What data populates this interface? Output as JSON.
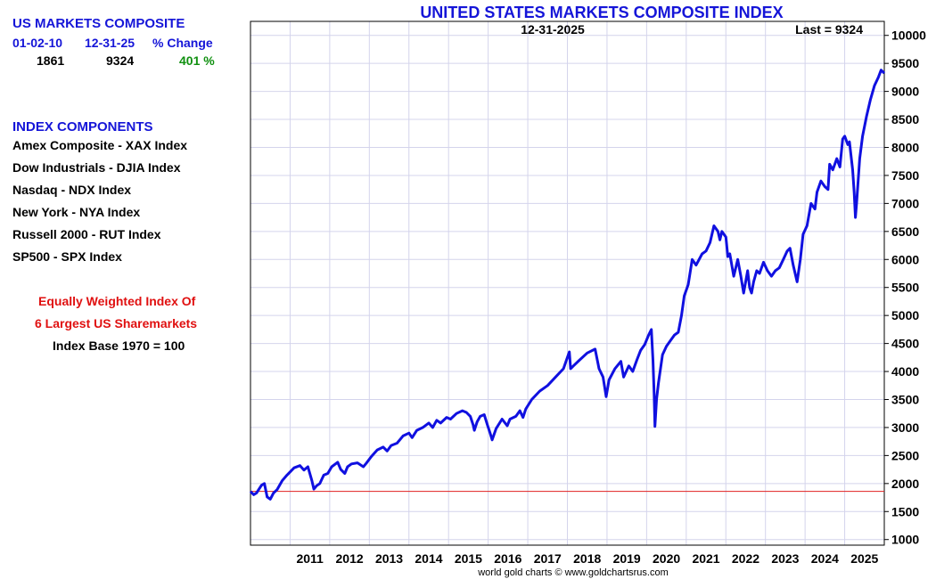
{
  "summary": {
    "heading": "US MARKETS COMPOSITE",
    "col_start": "01-02-10",
    "col_end": "12-31-25",
    "col_change": "% Change",
    "start_value": "1861",
    "end_value": "9324",
    "change_value": "401 %"
  },
  "components": {
    "heading": "INDEX COMPONENTS",
    "items": [
      "Amex Composite - XAX Index",
      "Dow Industrials - DJIA Index",
      "Nasdaq - NDX Index",
      "New York - NYA Index",
      "Russell 2000 - RUT Index",
      "SP500 - SPX Index"
    ]
  },
  "notes": {
    "line1": "Equally Weighted Index Of",
    "line2": "6 Largest US Sharemarkets",
    "line3": "Index Base 1970 = 100"
  },
  "colors": {
    "series": "#1010e0",
    "baseline": "#e02020",
    "grid": "#d4d4ec",
    "title": "#1515d8",
    "heading": "#1515d8",
    "change": "#109010",
    "note": "#e01010"
  },
  "chart_data": {
    "type": "line",
    "title": "UNITED STATES MARKETS COMPOSITE INDEX",
    "date_label": "12-31-2025",
    "last_label": "Last = 9324",
    "credit": "world gold charts © www.goldchartsrus.com",
    "xlabel": "",
    "ylabel": "",
    "xlim": [
      2010.0,
      2026.0
    ],
    "ylim": [
      900,
      10250
    ],
    "y_ticks": [
      1000,
      1500,
      2000,
      2500,
      3000,
      3500,
      4000,
      4500,
      5000,
      5500,
      6000,
      6500,
      7000,
      7500,
      8000,
      8500,
      9000,
      9500,
      10000
    ],
    "x_ticks": [
      2011,
      2012,
      2013,
      2014,
      2015,
      2016,
      2017,
      2018,
      2019,
      2020,
      2021,
      2022,
      2023,
      2024,
      2025
    ],
    "baseline": 1861,
    "grid": true,
    "series": [
      {
        "name": "US Markets Composite",
        "x": [
          2010.0,
          2010.08,
          2010.15,
          2010.28,
          2010.35,
          2010.42,
          2010.5,
          2010.58,
          2010.67,
          2010.8,
          2010.92,
          2011.1,
          2011.25,
          2011.35,
          2011.45,
          2011.55,
          2011.6,
          2011.67,
          2011.75,
          2011.85,
          2011.95,
          2012.05,
          2012.2,
          2012.28,
          2012.38,
          2012.45,
          2012.55,
          2012.7,
          2012.85,
          2012.92,
          2013.05,
          2013.2,
          2013.35,
          2013.45,
          2013.55,
          2013.7,
          2013.85,
          2014.0,
          2014.08,
          2014.2,
          2014.35,
          2014.5,
          2014.6,
          2014.7,
          2014.8,
          2014.95,
          2015.05,
          2015.2,
          2015.35,
          2015.45,
          2015.55,
          2015.62,
          2015.65,
          2015.72,
          2015.8,
          2015.9,
          2015.98,
          2016.05,
          2016.1,
          2016.2,
          2016.35,
          2016.48,
          2016.55,
          2016.7,
          2016.8,
          2016.88,
          2016.95,
          2017.1,
          2017.3,
          2017.5,
          2017.7,
          2017.9,
          2018.0,
          2018.05,
          2018.08,
          2018.15,
          2018.3,
          2018.5,
          2018.7,
          2018.8,
          2018.9,
          2018.98,
          2019.05,
          2019.2,
          2019.35,
          2019.42,
          2019.55,
          2019.65,
          2019.75,
          2019.85,
          2019.95,
          2020.05,
          2020.12,
          2020.16,
          2020.19,
          2020.21,
          2020.25,
          2020.3,
          2020.4,
          2020.5,
          2020.6,
          2020.7,
          2020.8,
          2020.88,
          2020.95,
          2021.05,
          2021.15,
          2021.25,
          2021.4,
          2021.5,
          2021.6,
          2021.7,
          2021.8,
          2021.85,
          2021.9,
          2022.0,
          2022.05,
          2022.1,
          2022.2,
          2022.3,
          2022.38,
          2022.45,
          2022.55,
          2022.6,
          2022.65,
          2022.7,
          2022.78,
          2022.85,
          2022.95,
          2023.05,
          2023.15,
          2023.25,
          2023.35,
          2023.45,
          2023.55,
          2023.62,
          2023.7,
          2023.8,
          2023.88,
          2023.95,
          2024.05,
          2024.15,
          2024.25,
          2024.3,
          2024.4,
          2024.5,
          2024.58,
          2024.62,
          2024.7,
          2024.8,
          2024.88,
          2024.95,
          2025.0,
          2025.08,
          2025.12,
          2025.2,
          2025.24,
          2025.27,
          2025.3,
          2025.38,
          2025.45,
          2025.55,
          2025.65,
          2025.75,
          2025.85,
          2025.92,
          2026.0
        ],
        "values": [
          1861,
          1800,
          1830,
          1970,
          2000,
          1760,
          1720,
          1830,
          1890,
          2050,
          2150,
          2280,
          2320,
          2240,
          2300,
          2050,
          1900,
          1960,
          2000,
          2150,
          2180,
          2300,
          2380,
          2250,
          2180,
          2300,
          2350,
          2370,
          2300,
          2360,
          2480,
          2600,
          2650,
          2580,
          2680,
          2720,
          2850,
          2900,
          2820,
          2950,
          3000,
          3080,
          3000,
          3130,
          3080,
          3180,
          3150,
          3250,
          3300,
          3270,
          3200,
          3050,
          2950,
          3100,
          3200,
          3230,
          3050,
          2900,
          2780,
          2980,
          3150,
          3030,
          3150,
          3200,
          3300,
          3180,
          3330,
          3500,
          3650,
          3750,
          3900,
          4050,
          4250,
          4350,
          4050,
          4100,
          4200,
          4330,
          4400,
          4050,
          3900,
          3550,
          3850,
          4050,
          4180,
          3900,
          4100,
          4000,
          4200,
          4380,
          4480,
          4650,
          4750,
          4200,
          3600,
          3020,
          3500,
          3800,
          4300,
          4450,
          4550,
          4650,
          4700,
          5000,
          5350,
          5550,
          6000,
          5900,
          6100,
          6150,
          6300,
          6600,
          6500,
          6350,
          6500,
          6400,
          6050,
          6100,
          5700,
          6000,
          5700,
          5400,
          5800,
          5500,
          5400,
          5600,
          5800,
          5750,
          5950,
          5800,
          5700,
          5800,
          5850,
          6000,
          6150,
          6200,
          5900,
          5600,
          6000,
          6450,
          6600,
          7000,
          6900,
          7200,
          7400,
          7300,
          7250,
          7700,
          7600,
          7800,
          7650,
          8150,
          8200,
          8050,
          8100,
          7600,
          7200,
          6750,
          7000,
          7800,
          8200,
          8550,
          8850,
          9100,
          9250,
          9380,
          9324
        ]
      }
    ]
  }
}
